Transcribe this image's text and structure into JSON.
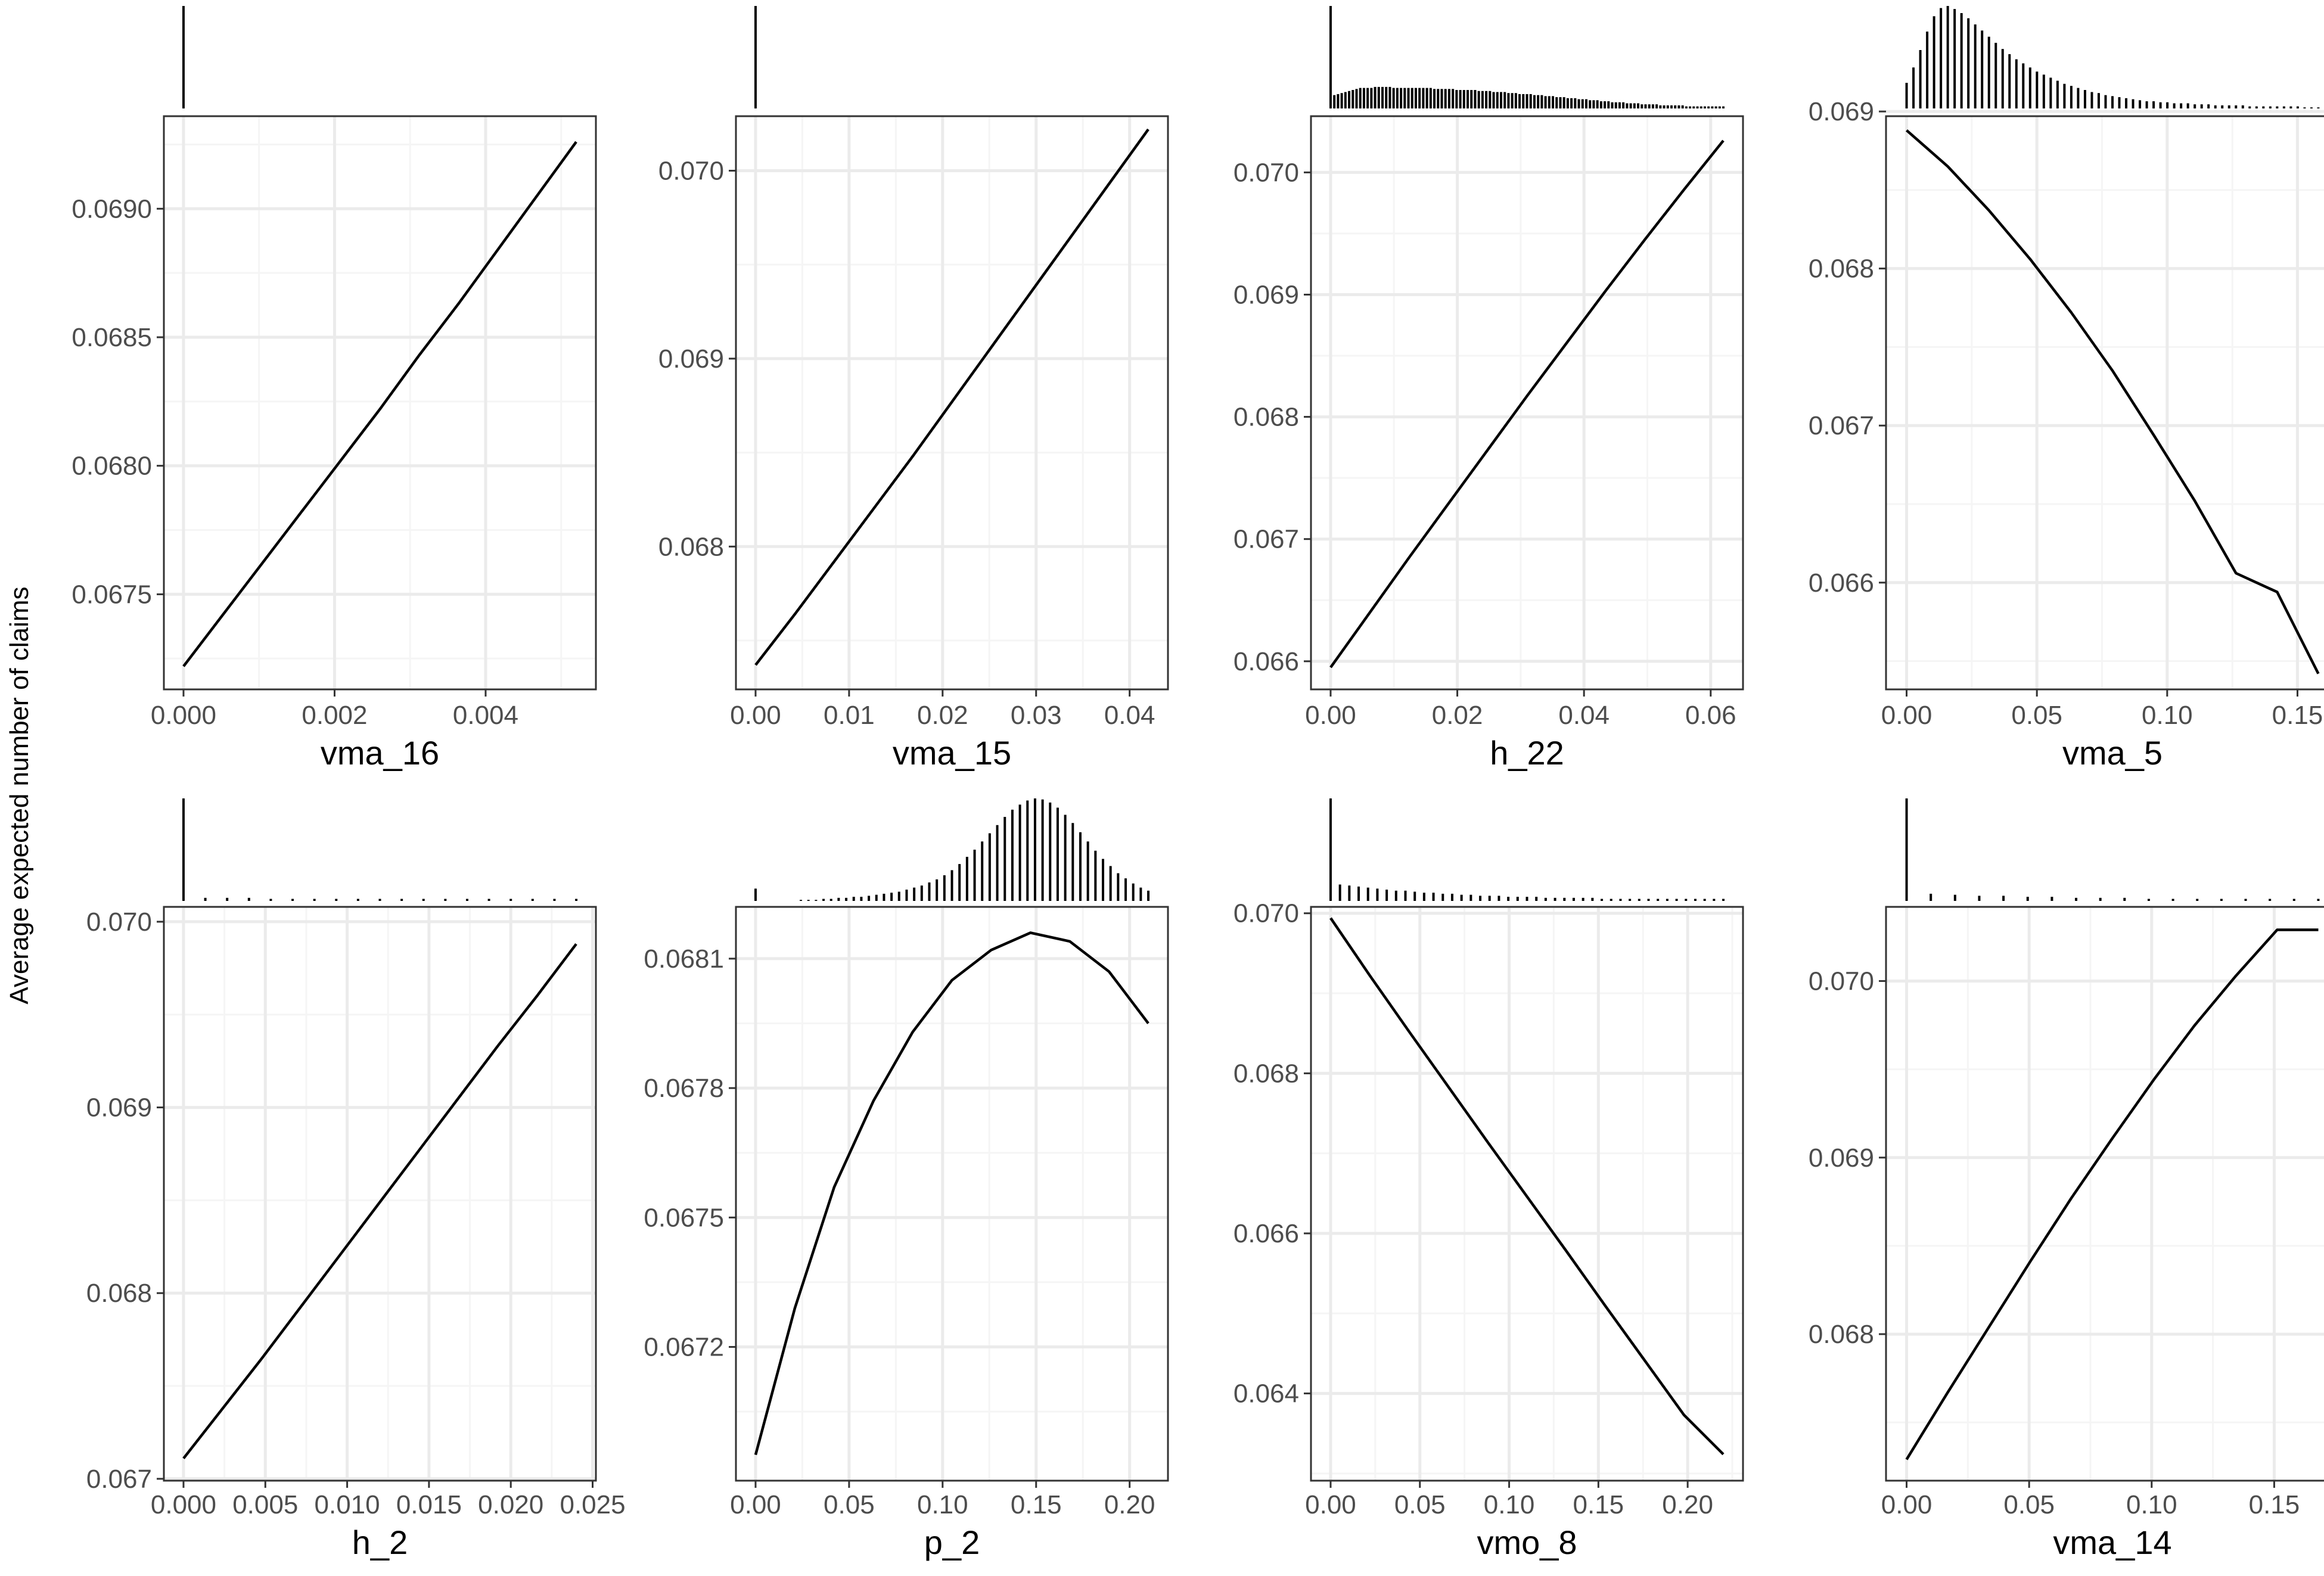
{
  "figure": {
    "ylabel": "Average expected number of claims"
  },
  "colors": {
    "line": "#000000",
    "grid_major": "#ebebeb",
    "grid_minor": "#f5f5f5",
    "panel_border": "#333333",
    "tick_text": "#4d4d4d"
  },
  "chart_data": [
    {
      "type": "line",
      "xlabel": "vma_16",
      "xlim": [
        -0.00026,
        0.00546
      ],
      "ylim": [
        0.06713,
        0.06936
      ],
      "xticks": [
        0.0,
        0.002,
        0.004
      ],
      "xtick_labels": [
        "0.000",
        "0.002",
        "0.004"
      ],
      "yticks": [
        0.0675,
        0.068,
        0.0685,
        0.069
      ],
      "ytick_labels": [
        "0.0675",
        "0.0680",
        "0.0685",
        "0.0690"
      ],
      "x": [
        0.0,
        0.00052,
        0.00104,
        0.00156,
        0.00208,
        0.0026,
        0.00312,
        0.00364,
        0.00416,
        0.00468,
        0.0052
      ],
      "y": [
        0.06722,
        0.06742,
        0.06762,
        0.06782,
        0.06802,
        0.06822,
        0.06843,
        0.06863,
        0.06884,
        0.06905,
        0.06926
      ],
      "hist": [
        1.0
      ]
    },
    {
      "type": "line",
      "xlabel": "vma_15",
      "xlim": [
        -0.0021,
        0.0441
      ],
      "ylim": [
        0.06724,
        0.07029
      ],
      "xticks": [
        0.0,
        0.01,
        0.02,
        0.03,
        0.04
      ],
      "xtick_labels": [
        "0.00",
        "0.01",
        "0.02",
        "0.03",
        "0.04"
      ],
      "yticks": [
        0.068,
        0.069,
        0.07
      ],
      "ytick_labels": [
        "0.068",
        "0.069",
        "0.070"
      ],
      "x": [
        0.0,
        0.0042,
        0.0084,
        0.0126,
        0.0168,
        0.021,
        0.0252,
        0.0294,
        0.0336,
        0.0378,
        0.042
      ],
      "y": [
        0.06737,
        0.06764,
        0.06792,
        0.0682,
        0.06848,
        0.06877,
        0.06906,
        0.06935,
        0.06964,
        0.06993,
        0.07022
      ],
      "hist": [
        1.0
      ]
    },
    {
      "type": "line",
      "xlabel": "h_22",
      "xlim": [
        -0.0031,
        0.0651
      ],
      "ylim": [
        0.06577,
        0.07046
      ],
      "xticks": [
        0.0,
        0.02,
        0.04,
        0.06
      ],
      "xtick_labels": [
        "0.00",
        "0.02",
        "0.04",
        "0.06"
      ],
      "yticks": [
        0.066,
        0.067,
        0.068,
        0.069,
        0.07
      ],
      "ytick_labels": [
        "0.066",
        "0.067",
        "0.068",
        "0.069",
        "0.070"
      ],
      "x": [
        0.0,
        0.0062,
        0.0124,
        0.0186,
        0.0248,
        0.031,
        0.0372,
        0.0434,
        0.0496,
        0.0558,
        0.062
      ],
      "y": [
        0.06595,
        0.0664,
        0.06685,
        0.06729,
        0.06773,
        0.06817,
        0.0686,
        0.06903,
        0.06945,
        0.06986,
        0.07026
      ],
      "hist": [
        1.0,
        0.13,
        0.14,
        0.15,
        0.16,
        0.17,
        0.18,
        0.19,
        0.2,
        0.2,
        0.2,
        0.2,
        0.21,
        0.21,
        0.21,
        0.21,
        0.21,
        0.2,
        0.2,
        0.2,
        0.2,
        0.2,
        0.2,
        0.2,
        0.2,
        0.2,
        0.2,
        0.2,
        0.19,
        0.19,
        0.19,
        0.19,
        0.19,
        0.19,
        0.18,
        0.18,
        0.18,
        0.18,
        0.18,
        0.18,
        0.17,
        0.17,
        0.17,
        0.17,
        0.16,
        0.16,
        0.16,
        0.16,
        0.15,
        0.15,
        0.15,
        0.14,
        0.14,
        0.14,
        0.14,
        0.13,
        0.13,
        0.13,
        0.12,
        0.12,
        0.12,
        0.11,
        0.11,
        0.11,
        0.1,
        0.1,
        0.1,
        0.09,
        0.09,
        0.09,
        0.08,
        0.08,
        0.08,
        0.07,
        0.07,
        0.07,
        0.06,
        0.06,
        0.06,
        0.06,
        0.05,
        0.05,
        0.05,
        0.05,
        0.04,
        0.04,
        0.04,
        0.04,
        0.04,
        0.03,
        0.03,
        0.03,
        0.03,
        0.03,
        0.03,
        0.03,
        0.02,
        0.02,
        0.02,
        0.02,
        0.02,
        0.02,
        0.02,
        0.02,
        0.02,
        0.02,
        0.02
      ]
    },
    {
      "type": "line",
      "xlabel": "vma_5",
      "xlim": [
        -0.0079,
        0.1659
      ],
      "ylim": [
        0.06532,
        0.06897
      ],
      "xticks": [
        0.0,
        0.05,
        0.1,
        0.15
      ],
      "xtick_labels": [
        "0.00",
        "0.05",
        "0.10",
        "0.15"
      ],
      "yticks": [
        0.066,
        0.067,
        0.068,
        0.069
      ],
      "ytick_labels": [
        "0.066",
        "0.067",
        "0.068",
        "0.069"
      ],
      "x": [
        0.0,
        0.0158,
        0.0316,
        0.0474,
        0.0632,
        0.079,
        0.0948,
        0.1106,
        0.1264,
        0.1422,
        0.158
      ],
      "y": [
        0.06888,
        0.06865,
        0.06837,
        0.06806,
        0.06772,
        0.06735,
        0.06694,
        0.06652,
        0.06606,
        0.06594,
        0.06542
      ],
      "hist": [
        0.25,
        0.4,
        0.57,
        0.75,
        0.9,
        0.98,
        1.0,
        0.97,
        0.93,
        0.88,
        0.82,
        0.76,
        0.7,
        0.64,
        0.58,
        0.53,
        0.48,
        0.44,
        0.4,
        0.36,
        0.33,
        0.3,
        0.27,
        0.24,
        0.22,
        0.2,
        0.18,
        0.16,
        0.15,
        0.13,
        0.12,
        0.11,
        0.1,
        0.09,
        0.08,
        0.07,
        0.07,
        0.06,
        0.06,
        0.05,
        0.05,
        0.05,
        0.04,
        0.04,
        0.04,
        0.03,
        0.03,
        0.03,
        0.03,
        0.03,
        0.02,
        0.02,
        0.02,
        0.02,
        0.02,
        0.02,
        0.02,
        0.02,
        0.01,
        0.01,
        0.01
      ]
    },
    {
      "type": "line",
      "xlabel": "h_2",
      "xlim": [
        -0.0012,
        0.0252
      ],
      "ylim": [
        0.06699,
        0.07008
      ],
      "xticks": [
        0.0,
        0.005,
        0.01,
        0.015,
        0.02,
        0.025
      ],
      "xtick_labels": [
        "0.000",
        "0.005",
        "0.010",
        "0.015",
        "0.020",
        "0.025"
      ],
      "yticks": [
        0.067,
        0.068,
        0.069,
        0.07
      ],
      "ytick_labels": [
        "0.067",
        "0.068",
        "0.069",
        "0.070"
      ],
      "x": [
        0.0,
        0.0024,
        0.0048,
        0.0072,
        0.0096,
        0.012,
        0.0144,
        0.0168,
        0.0192,
        0.0216,
        0.024
      ],
      "y": [
        0.06711,
        0.06738,
        0.06765,
        0.06793,
        0.06821,
        0.06849,
        0.06877,
        0.06905,
        0.06933,
        0.0696,
        0.06988
      ],
      "hist": [
        1.0,
        0.03,
        0.03,
        0.03,
        0.02,
        0.02,
        0.02,
        0.02,
        0.02,
        0.02,
        0.02,
        0.02,
        0.02,
        0.02,
        0.02,
        0.02,
        0.02,
        0.02,
        0.02
      ]
    },
    {
      "type": "line",
      "xlabel": "p_2",
      "xlim": [
        -0.0105,
        0.2205
      ],
      "ylim": [
        0.06689,
        0.06822
      ],
      "xticks": [
        0.0,
        0.05,
        0.1,
        0.15,
        0.2
      ],
      "xtick_labels": [
        "0.00",
        "0.05",
        "0.10",
        "0.15",
        "0.20"
      ],
      "yticks": [
        0.0672,
        0.0675,
        0.0678,
        0.0681
      ],
      "ytick_labels": [
        "0.0672",
        "0.0675",
        "0.0678",
        "0.0681"
      ],
      "x": [
        0.0,
        0.021,
        0.042,
        0.063,
        0.084,
        0.105,
        0.126,
        0.147,
        0.168,
        0.189,
        0.21
      ],
      "y": [
        0.06695,
        0.06729,
        0.06757,
        0.06777,
        0.06793,
        0.06805,
        0.06812,
        0.06816,
        0.06814,
        0.06807,
        0.06795
      ],
      "hist": [
        0.12,
        0.0,
        0.0,
        0.0,
        0.0,
        0.0,
        0.01,
        0.01,
        0.01,
        0.02,
        0.02,
        0.03,
        0.03,
        0.04,
        0.04,
        0.05,
        0.06,
        0.07,
        0.08,
        0.09,
        0.11,
        0.13,
        0.15,
        0.18,
        0.21,
        0.25,
        0.3,
        0.36,
        0.43,
        0.5,
        0.58,
        0.66,
        0.74,
        0.82,
        0.89,
        0.94,
        0.98,
        1.0,
        0.99,
        0.96,
        0.91,
        0.84,
        0.76,
        0.67,
        0.58,
        0.49,
        0.41,
        0.34,
        0.27,
        0.22,
        0.17,
        0.13,
        0.1
      ]
    },
    {
      "type": "line",
      "xlabel": "vmo_8",
      "xlim": [
        -0.011,
        0.231
      ],
      "ylim": [
        0.06291,
        0.07008
      ],
      "xticks": [
        0.0,
        0.05,
        0.1,
        0.15,
        0.2
      ],
      "xtick_labels": [
        "0.00",
        "0.05",
        "0.10",
        "0.15",
        "0.20"
      ],
      "yticks": [
        0.064,
        0.066,
        0.068,
        0.07
      ],
      "ytick_labels": [
        "0.064",
        "0.066",
        "0.068",
        "0.070"
      ],
      "x": [
        0.0,
        0.022,
        0.044,
        0.066,
        0.088,
        0.11,
        0.132,
        0.154,
        0.176,
        0.198,
        0.22
      ],
      "y": [
        0.06994,
        0.06922,
        0.06852,
        0.06783,
        0.06714,
        0.06646,
        0.06578,
        0.06509,
        0.06441,
        0.06373,
        0.06324
      ],
      "hist": [
        1.0,
        0.16,
        0.15,
        0.14,
        0.13,
        0.12,
        0.11,
        0.1,
        0.1,
        0.09,
        0.08,
        0.08,
        0.07,
        0.07,
        0.06,
        0.06,
        0.05,
        0.05,
        0.05,
        0.04,
        0.04,
        0.04,
        0.04,
        0.03,
        0.03,
        0.03,
        0.03,
        0.03,
        0.03,
        0.02,
        0.02,
        0.02,
        0.02,
        0.02,
        0.02,
        0.02,
        0.02,
        0.02,
        0.02,
        0.02,
        0.02,
        0.02,
        0.02
      ]
    },
    {
      "type": "line",
      "xlabel": "vma_14",
      "xlim": [
        -0.0084,
        0.1764
      ],
      "ylim": [
        0.06717,
        0.07042
      ],
      "xticks": [
        0.0,
        0.05,
        0.1,
        0.15
      ],
      "xtick_labels": [
        "0.00",
        "0.05",
        "0.10",
        "0.15"
      ],
      "yticks": [
        0.068,
        0.069,
        0.07
      ],
      "ytick_labels": [
        "0.068",
        "0.069",
        "0.070"
      ],
      "x": [
        0.0,
        0.0168,
        0.0336,
        0.0504,
        0.0672,
        0.084,
        0.1008,
        0.1176,
        0.1344,
        0.1512,
        0.168
      ],
      "y": [
        0.06729,
        0.06767,
        0.06804,
        0.06841,
        0.06877,
        0.06911,
        0.06944,
        0.06975,
        0.07003,
        0.07029,
        0.07029
      ],
      "hist": [
        1.0,
        0.07,
        0.06,
        0.05,
        0.05,
        0.04,
        0.04,
        0.03,
        0.03,
        0.03,
        0.02,
        0.02,
        0.02,
        0.02,
        0.02,
        0.02,
        0.02,
        0.02
      ]
    }
  ]
}
